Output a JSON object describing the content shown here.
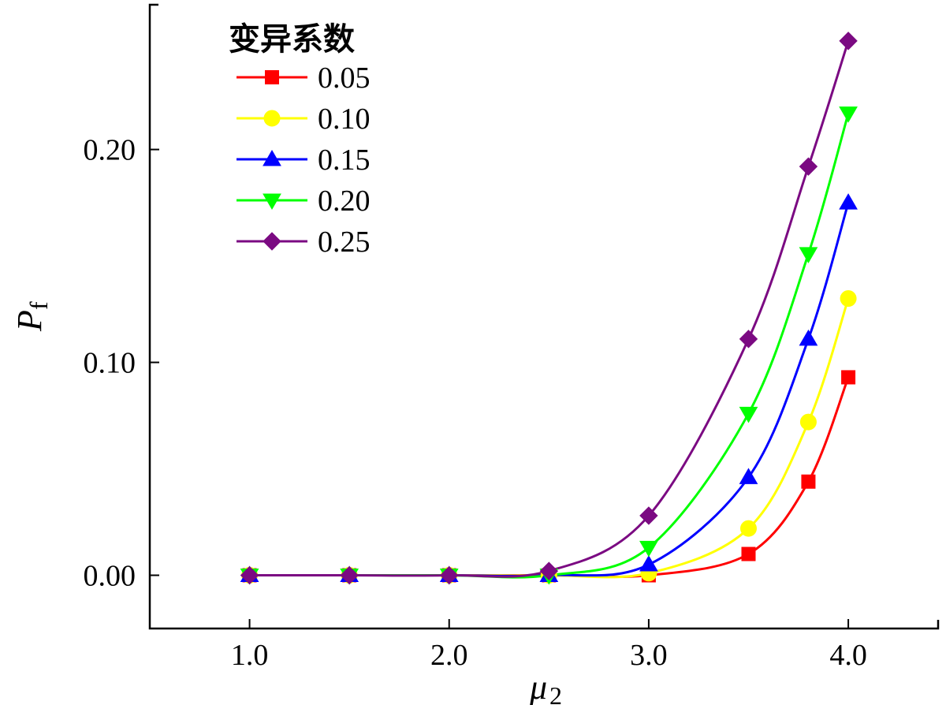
{
  "chart_data": {
    "type": "line",
    "xlabel": "μ",
    "xlabel_sub": "2",
    "ylabel": "P",
    "ylabel_sub": "f",
    "xlim": [
      0.5,
      4.45
    ],
    "ylim": [
      -0.025,
      0.268
    ],
    "xticks": [
      1.0,
      2.0,
      3.0,
      4.0
    ],
    "xtick_labels": [
      "1.0",
      "2.0",
      "3.0",
      "4.0"
    ],
    "yticks": [
      0.0,
      0.1,
      0.2
    ],
    "ytick_labels": [
      "0.00",
      "0.10",
      "0.20"
    ],
    "grid": false,
    "legend_title": "变异系数",
    "legend_position": "top-left",
    "x": [
      1.0,
      1.5,
      2.0,
      2.5,
      3.0,
      3.5,
      3.8,
      4.0
    ],
    "series": [
      {
        "name": "0.05",
        "color": "#ff0000",
        "marker": "square",
        "values": [
          0.0,
          0.0,
          0.0,
          0.0,
          0.0,
          0.01,
          0.044,
          0.093
        ]
      },
      {
        "name": "0.10",
        "color": "#ffff00",
        "marker": "circle",
        "values": [
          0.0,
          0.0,
          0.0,
          0.0,
          0.001,
          0.022,
          0.072,
          0.13
        ]
      },
      {
        "name": "0.15",
        "color": "#0000ff",
        "marker": "triangle-up",
        "values": [
          0.0,
          0.0,
          0.0,
          0.0,
          0.005,
          0.046,
          0.111,
          0.175
        ]
      },
      {
        "name": "0.20",
        "color": "#00ff00",
        "marker": "triangle-down",
        "values": [
          0.0,
          0.0,
          0.0,
          0.0,
          0.013,
          0.076,
          0.151,
          0.217
        ]
      },
      {
        "name": "0.25",
        "color": "#7b0a82",
        "marker": "diamond",
        "values": [
          0.0,
          0.0,
          0.0,
          0.002,
          0.028,
          0.111,
          0.192,
          0.251
        ]
      }
    ]
  }
}
